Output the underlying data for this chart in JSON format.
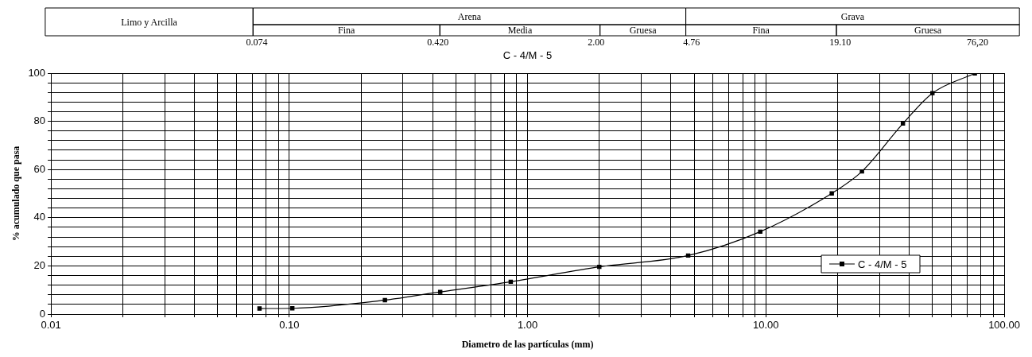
{
  "chart_data": {
    "type": "line",
    "title": "C - 4/M - 5",
    "xlabel": "Diametro de las partículas (mm)",
    "ylabel": "% acumulado que pasa",
    "log": "x",
    "grid": true,
    "marker": "square",
    "legend": "bottom right",
    "xlim": [
      0.01,
      100
    ],
    "ylim": [
      0,
      100
    ],
    "xticks": [
      {
        "value": 0.01,
        "label": "0.01"
      },
      {
        "value": 0.02,
        "label": null
      },
      {
        "value": 0.03,
        "label": null
      },
      {
        "value": 0.04,
        "label": null
      },
      {
        "value": 0.05,
        "label": null
      },
      {
        "value": 0.06,
        "label": null
      },
      {
        "value": 0.07,
        "label": null
      },
      {
        "value": 0.08,
        "label": null
      },
      {
        "value": 0.09,
        "label": null
      },
      {
        "value": 0.1,
        "label": "0.10"
      },
      {
        "value": 0.2,
        "label": null
      },
      {
        "value": 0.3,
        "label": null
      },
      {
        "value": 0.4,
        "label": null
      },
      {
        "value": 0.5,
        "label": null
      },
      {
        "value": 0.6,
        "label": null
      },
      {
        "value": 0.7,
        "label": null
      },
      {
        "value": 0.8,
        "label": null
      },
      {
        "value": 0.9,
        "label": null
      },
      {
        "value": 1,
        "label": "1.00"
      },
      {
        "value": 2,
        "label": null
      },
      {
        "value": 3,
        "label": null
      },
      {
        "value": 4,
        "label": null
      },
      {
        "value": 5,
        "label": null
      },
      {
        "value": 6,
        "label": null
      },
      {
        "value": 7,
        "label": null
      },
      {
        "value": 8,
        "label": null
      },
      {
        "value": 9,
        "label": null
      },
      {
        "value": 10,
        "label": "10.00"
      },
      {
        "value": 20,
        "label": null
      },
      {
        "value": 30,
        "label": null
      },
      {
        "value": 40,
        "label": null
      },
      {
        "value": 50,
        "label": null
      },
      {
        "value": 60,
        "label": null
      },
      {
        "value": 70,
        "label": null
      },
      {
        "value": 80,
        "label": null
      },
      {
        "value": 90,
        "label": null
      },
      {
        "value": 100,
        "label": "100.00"
      }
    ],
    "yticks": [
      0,
      {
        "value": 4,
        "label": null
      },
      {
        "value": 8,
        "label": null
      },
      {
        "value": 12,
        "label": null
      },
      {
        "value": 16,
        "label": null
      },
      20,
      {
        "value": 24,
        "label": null
      },
      {
        "value": 28,
        "label": null
      },
      {
        "value": 32,
        "label": null
      },
      {
        "value": 36,
        "label": null
      },
      40,
      {
        "value": 44,
        "label": null
      },
      {
        "value": 48,
        "label": null
      },
      {
        "value": 52,
        "label": null
      },
      {
        "value": 56,
        "label": null
      },
      60,
      {
        "value": 64,
        "label": null
      },
      {
        "value": 68,
        "label": null
      },
      {
        "value": 72,
        "label": null
      },
      {
        "value": 76,
        "label": null
      },
      80,
      {
        "value": 84,
        "label": null
      },
      {
        "value": 88,
        "label": null
      },
      {
        "value": 92,
        "label": null
      },
      {
        "value": 96,
        "label": null
      },
      100
    ],
    "annotations": [
      "Limo y Arcilla",
      "Arena",
      "Grava",
      "Fina",
      "Media",
      "Gruesa",
      "Fina",
      "Gruesa",
      "0.074",
      "0.420",
      "2.00",
      "4.76",
      "19.10",
      "76,20"
    ],
    "series": [
      {
        "name": "C - 4/M - 5",
        "color": "#000000",
        "x": [
          0.075,
          0.103,
          0.252,
          0.43,
          0.85,
          2,
          4.72,
          9.47,
          18.9,
          25.3,
          37.6,
          50,
          75.3
        ],
        "values": [
          2.3,
          2.4,
          5.8,
          9.2,
          13.4,
          19.6,
          24.3,
          34.2,
          50.1,
          59.2,
          79.1,
          91.7,
          99.9
        ]
      }
    ]
  }
}
